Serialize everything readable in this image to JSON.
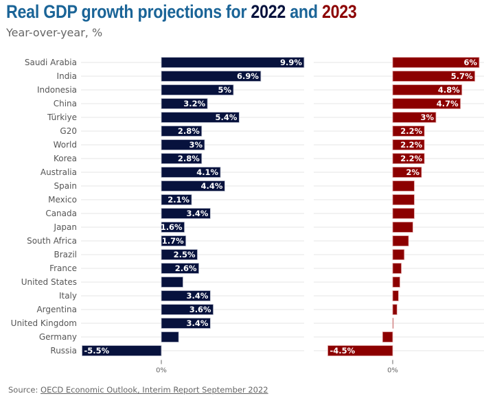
{
  "header": {
    "title_prefix": "Real GDP growth projections for ",
    "title_year1": "2022",
    "title_and": " and ",
    "title_year2": "2023",
    "subtitle": "Year-over-year, %"
  },
  "source": {
    "label": "Source: ",
    "link_text": "OECD Economic Outlook, Interim Report September 2022"
  },
  "colors": {
    "title_blue": "#1a6497",
    "series_2022": "#07123d",
    "series_2023": "#8c0000",
    "gridline": "#e6e6e6",
    "label_gray": "#555555"
  },
  "chart_data": {
    "type": "bar",
    "orientation": "horizontal",
    "title": "Real GDP growth projections for 2022 and 2023",
    "subtitle": "Year-over-year, %",
    "xlabel": "",
    "ylabel": "",
    "grid": true,
    "categories": [
      "Saudi Arabia",
      "India",
      "Indonesia",
      "China",
      "Türkiye",
      "G20",
      "World",
      "Korea",
      "Australia",
      "Spain",
      "Mexico",
      "Canada",
      "Japan",
      "South Africa",
      "Brazil",
      "France",
      "United States",
      "Italy",
      "Argentina",
      "United Kingdom",
      "Germany",
      "Russia"
    ],
    "series": [
      {
        "name": "2022",
        "color": "#07123d",
        "values": [
          9.9,
          6.9,
          5.0,
          3.2,
          5.4,
          2.8,
          3.0,
          2.8,
          4.1,
          4.4,
          2.1,
          3.4,
          1.6,
          1.7,
          2.5,
          2.6,
          1.5,
          3.4,
          3.6,
          3.4,
          1.2,
          -5.5
        ],
        "labels": [
          "9.9%",
          "6.9%",
          "5%",
          "3.2%",
          "5.4%",
          "2.8%",
          "3%",
          "2.8%",
          "4.1%",
          "4.4%",
          "2.1%",
          "3.4%",
          "1.6%",
          "1.7%",
          "2.5%",
          "2.6%",
          "",
          "3.4%",
          "3.6%",
          "3.4%",
          "",
          "-5.5%"
        ],
        "xlim": [
          -5.5,
          9.9
        ],
        "zero_tick_label": "0%"
      },
      {
        "name": "2023",
        "color": "#8c0000",
        "values": [
          6.0,
          5.7,
          4.8,
          4.7,
          3.0,
          2.2,
          2.2,
          2.2,
          2.0,
          1.5,
          1.5,
          1.5,
          1.4,
          1.1,
          0.8,
          0.6,
          0.5,
          0.4,
          0.3,
          0.0,
          -0.7,
          -4.5
        ],
        "labels": [
          "6%",
          "5.7%",
          "4.8%",
          "4.7%",
          "3%",
          "2.2%",
          "2.2%",
          "2.2%",
          "2%",
          "",
          "",
          "",
          "",
          "",
          "",
          "",
          "",
          "",
          "",
          "",
          "",
          "-4.5%"
        ],
        "xlim": [
          -4.5,
          6.0
        ],
        "zero_tick_label": "0%"
      }
    ]
  }
}
